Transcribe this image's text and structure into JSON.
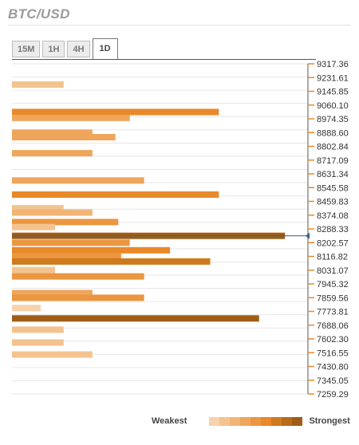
{
  "title": "BTC/USD",
  "tabs": [
    {
      "label": "15M",
      "active": false
    },
    {
      "label": "1H",
      "active": false
    },
    {
      "label": "4H",
      "active": false
    },
    {
      "label": "1D",
      "active": true
    }
  ],
  "legend": {
    "weakest": "Weakest",
    "strongest": "Strongest",
    "scale_colors": [
      "#f6d2ad",
      "#f3c38f",
      "#f1b474",
      "#efa55b",
      "#eb9640",
      "#e8892a",
      "#cf7a1c",
      "#b86b18",
      "#a05d14"
    ]
  },
  "current_price": 8245,
  "chart_data": {
    "type": "bar",
    "orientation": "horizontal",
    "title": "BTC/USD",
    "y_ticks": [
      "9317.36",
      "9231.61",
      "9145.85",
      "9060.10",
      "8974.35",
      "8888.60",
      "8802.84",
      "8717.09",
      "8631.34",
      "8545.58",
      "8459.83",
      "8374.08",
      "8288.33",
      "8202.57",
      "8116.82",
      "8031.07",
      "7945.32",
      "7859.56",
      "7773.81",
      "7688.06",
      "7602.30",
      "7516.55",
      "7430.80",
      "7345.05",
      "7259.29"
    ],
    "ylim": [
      7259.29,
      9317.36
    ],
    "bars": [
      {
        "price": 9188,
        "strength": 1.8,
        "level": 1
      },
      {
        "price": 9017,
        "strength": 7.2,
        "level": 5
      },
      {
        "price": 8980,
        "strength": 4.1,
        "level": 3
      },
      {
        "price": 8888,
        "strength": 2.8,
        "level": 3
      },
      {
        "price": 8860,
        "strength": 3.6,
        "level": 3
      },
      {
        "price": 8760,
        "strength": 2.8,
        "level": 3
      },
      {
        "price": 8590,
        "strength": 4.6,
        "level": 3
      },
      {
        "price": 8502,
        "strength": 7.2,
        "level": 5
      },
      {
        "price": 8417,
        "strength": 1.8,
        "level": 1
      },
      {
        "price": 8390,
        "strength": 2.8,
        "level": 2
      },
      {
        "price": 8331,
        "strength": 3.7,
        "level": 4
      },
      {
        "price": 8300,
        "strength": 1.5,
        "level": 1
      },
      {
        "price": 8245,
        "strength": 9.5,
        "level": 8
      },
      {
        "price": 8202,
        "strength": 4.1,
        "level": 4
      },
      {
        "price": 8155,
        "strength": 5.5,
        "level": 5
      },
      {
        "price": 8116,
        "strength": 3.8,
        "level": 4
      },
      {
        "price": 8085,
        "strength": 6.9,
        "level": 6
      },
      {
        "price": 8031,
        "strength": 1.5,
        "level": 1
      },
      {
        "price": 7992,
        "strength": 4.6,
        "level": 4
      },
      {
        "price": 7888,
        "strength": 2.8,
        "level": 3
      },
      {
        "price": 7859,
        "strength": 4.6,
        "level": 4
      },
      {
        "price": 7795,
        "strength": 1.0,
        "level": 0
      },
      {
        "price": 7730,
        "strength": 8.6,
        "level": 8
      },
      {
        "price": 7660,
        "strength": 1.8,
        "level": 1
      },
      {
        "price": 7580,
        "strength": 1.8,
        "level": 1
      },
      {
        "price": 7505,
        "strength": 2.8,
        "level": 1
      }
    ]
  }
}
